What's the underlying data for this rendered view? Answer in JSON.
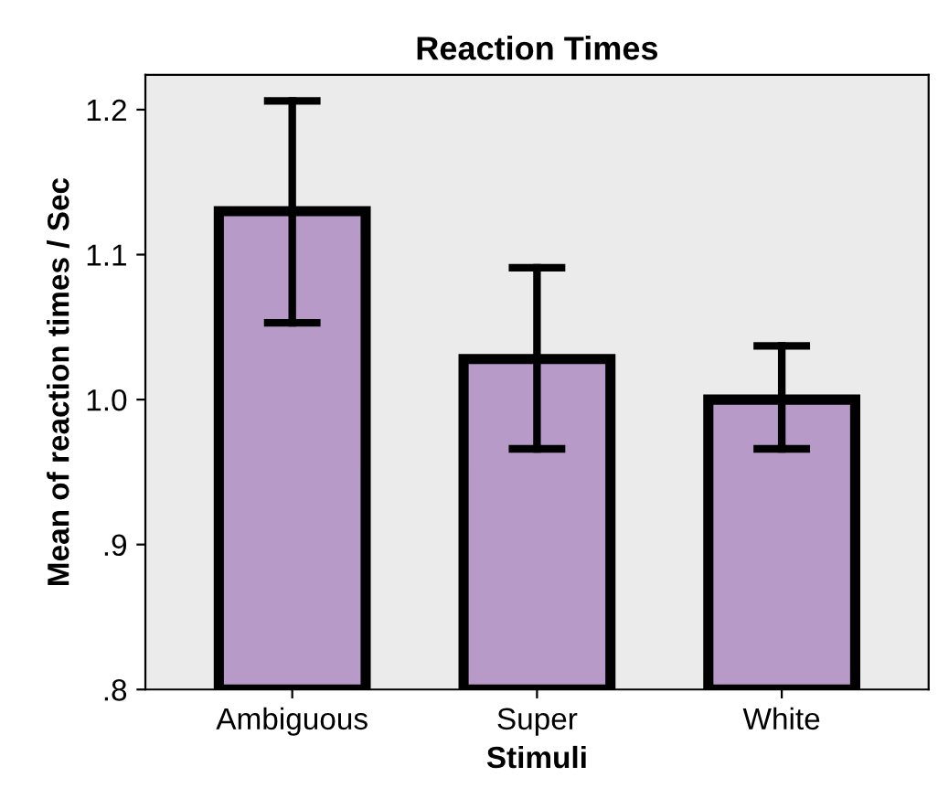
{
  "chart_data": {
    "type": "bar",
    "title": "Reaction Times",
    "xlabel": "Stimuli",
    "ylabel": "Mean of reaction times / Sec",
    "categories": [
      "Ambiguous",
      "Super",
      "White"
    ],
    "values": [
      1.13,
      1.028,
      1.0
    ],
    "errors": [
      [
        1.053,
        1.206
      ],
      [
        0.966,
        1.091
      ],
      [
        0.966,
        1.037
      ]
    ],
    "color": "#b79ac8",
    "ylim": [
      0.8,
      1.224
    ],
    "yticks": [
      {
        "value": 0.8,
        "label": ".8"
      },
      {
        "value": 0.9,
        "label": ".9"
      },
      {
        "value": 1.0,
        "label": "1.0"
      },
      {
        "value": 1.1,
        "label": "1.1"
      },
      {
        "value": 1.2,
        "label": "1.2"
      }
    ],
    "grid": false
  }
}
